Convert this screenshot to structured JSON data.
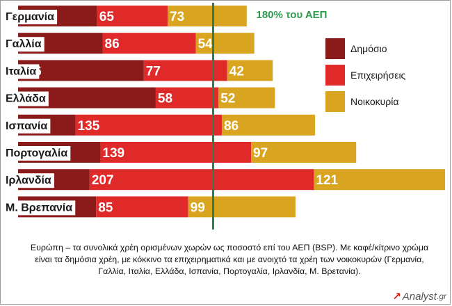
{
  "colors": {
    "public": "#8b1a1a",
    "business": "#e02a2a",
    "households": "#d9a521",
    "threshold_line": "#2e7d4f",
    "threshold_text": "#2e9a4e"
  },
  "chart_data": {
    "type": "bar",
    "orientation": "horizontal",
    "stacked": true,
    "categories": [
      "Γερμανία",
      "Γαλλία",
      "Ιταλία",
      "Ελλάδα",
      "Ισπανία",
      "Πορτογαλία",
      "Ιρλανδία",
      "Μ. Βρεπανία"
    ],
    "series": [
      {
        "name": "Δημόσιο",
        "color": "#8b1a1a",
        "values": [
          73,
          78,
          116,
          127,
          53,
          76,
          66,
          72
        ]
      },
      {
        "name": "Επιχειρήσεις",
        "color": "#e02a2a",
        "values": [
          65,
          86,
          77,
          58,
          135,
          139,
          207,
          85
        ]
      },
      {
        "name": "Νοικοκυρία",
        "color": "#d9a521",
        "values": [
          73,
          54,
          42,
          52,
          86,
          97,
          121,
          99
        ]
      }
    ],
    "reference_line": {
      "value": 180,
      "label": "180% του ΑΕΠ"
    },
    "xlim": [
      0,
      394
    ],
    "legend_position": "right",
    "grid": false
  },
  "caption": "Ευρώπη – τα συνολικά χρέη ορισμένων χωρών ως ποσοστό επί του ΑΕΠ (BSP). Με καφέ/κίτρινο χρώμα είναι τα δημόσια χρέη, με κόκκινο τα επιχειρηματικά και με ανοιχτό τα χρέη των νοικοκυρών (Γερμανία, Γαλλία, Ιταλία, Ελλάδα, Ισπανία, Πορτογαλία, Ιρλανδία, Μ. Βρετανία).",
  "logo": {
    "mark": "↗",
    "name": "Analyst",
    "domain": ".gr"
  }
}
